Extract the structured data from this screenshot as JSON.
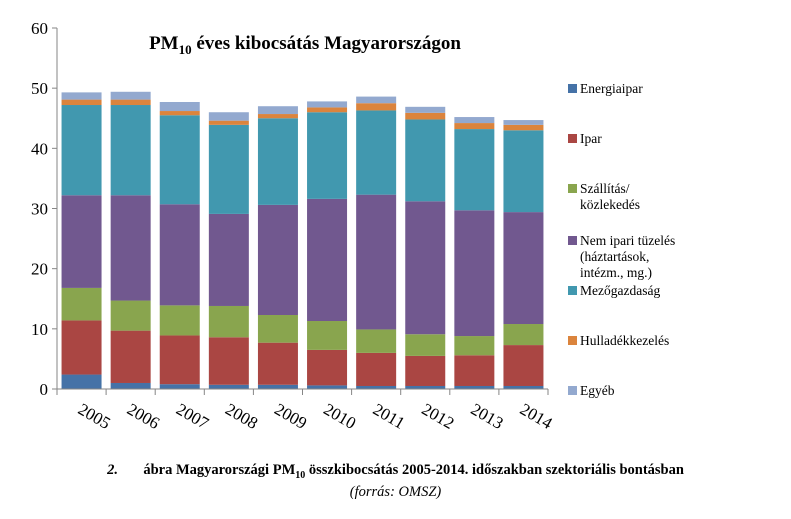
{
  "chart_data": {
    "type": "bar",
    "stacked": true,
    "title": "PM",
    "title_sub": "10",
    "title_rest": " éves kibocsátás Magyarországon",
    "categories": [
      "2005",
      "2006",
      "2007",
      "2008",
      "2009",
      "2010",
      "2011",
      "2012",
      "2013",
      "2014"
    ],
    "ylim": [
      0,
      60
    ],
    "yticks": [
      0,
      10,
      20,
      30,
      40,
      50,
      60
    ],
    "grid": false,
    "legend_position": "right",
    "series": [
      {
        "name": "Energiaipar",
        "color": "#4572A7",
        "values": [
          2.4,
          1.0,
          0.8,
          0.7,
          0.7,
          0.6,
          0.5,
          0.5,
          0.5,
          0.5
        ]
      },
      {
        "name": "Ipar",
        "color": "#AA4643",
        "values": [
          9.0,
          8.7,
          8.1,
          7.9,
          7.0,
          5.9,
          5.5,
          5.0,
          5.1,
          6.8
        ]
      },
      {
        "name": "Szállítás/\nközlekedés",
        "color": "#89A54E",
        "values": [
          5.4,
          5.0,
          5.0,
          5.2,
          4.6,
          4.8,
          3.9,
          3.6,
          3.2,
          3.5
        ]
      },
      {
        "name": "Nem ipari tüzelés\n(háztartások,\nintézm., mg.)",
        "color": "#71588F",
        "values": [
          15.4,
          17.5,
          16.8,
          15.3,
          18.3,
          20.3,
          22.4,
          22.1,
          20.9,
          18.6
        ]
      },
      {
        "name": "Mezőgazdaság",
        "color": "#4198AF",
        "values": [
          15.0,
          15.0,
          14.8,
          14.8,
          14.4,
          14.4,
          14.0,
          13.6,
          13.5,
          13.6
        ]
      },
      {
        "name": "Hulladékkezelés",
        "color": "#DB843D",
        "values": [
          0.9,
          0.9,
          0.7,
          0.7,
          0.7,
          0.8,
          1.2,
          1.1,
          1.0,
          0.9
        ]
      },
      {
        "name": "Egyéb",
        "color": "#93A9CF",
        "values": [
          1.2,
          1.3,
          1.5,
          1.4,
          1.3,
          1.0,
          1.1,
          1.0,
          1.0,
          0.8
        ]
      }
    ]
  },
  "caption": {
    "number": "2.",
    "text_before": "ábra Magyarországi PM",
    "text_sub": "10",
    "text_after": " összkibocsátás 2005-2014. időszakban szektoriális bontásban",
    "source": "(forrás: OMSZ)"
  }
}
